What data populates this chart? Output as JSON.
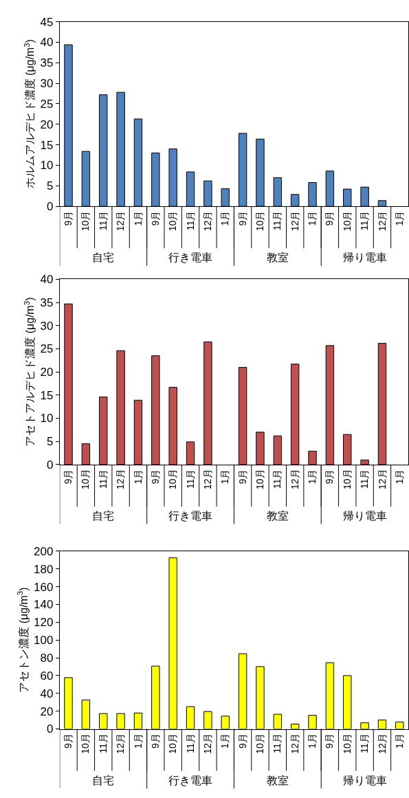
{
  "chart_data": [
    {
      "type": "bar",
      "ylabel": "ホルムアルデヒド濃度 (μg/m$^{3}$)",
      "categories": [
        "9月",
        "10月",
        "11月",
        "12月",
        "1月",
        "9月",
        "10月",
        "11月",
        "12月",
        "1月",
        "9月",
        "10月",
        "11月",
        "12月",
        "1月",
        "9月",
        "10月",
        "11月",
        "12月",
        "1月"
      ],
      "annotations": [
        "自宅",
        "行き電車",
        "教室",
        "帰り電車"
      ],
      "color": "#4f81bd",
      "values": [
        39.4,
        13.4,
        27.2,
        27.8,
        21.3,
        13.0,
        14.0,
        8.4,
        6.2,
        4.3,
        17.8,
        16.4,
        7.0,
        2.9,
        5.8,
        8.6,
        4.2,
        4.7,
        1.4,
        null
      ],
      "ylim": [
        0,
        45
      ],
      "yticks": [
        0,
        5,
        10,
        15,
        20,
        25,
        30,
        35,
        40,
        45
      ]
    },
    {
      "type": "bar",
      "ylabel": "アセトアルデヒド濃度 (μg/m$^{3}$)",
      "categories": [
        "9月",
        "10月",
        "11月",
        "12月",
        "1月",
        "9月",
        "10月",
        "11月",
        "12月",
        "1月",
        "9月",
        "10月",
        "11月",
        "12月",
        "1月",
        "9月",
        "10月",
        "11月",
        "12月",
        "1月"
      ],
      "annotations": [
        "自宅",
        "行き電車",
        "教室",
        "帰り電車"
      ],
      "color": "#c0504d",
      "values": [
        34.7,
        4.5,
        14.6,
        24.6,
        13.9,
        23.5,
        16.7,
        4.9,
        26.5,
        null,
        21.0,
        7.0,
        6.2,
        21.7,
        2.9,
        25.7,
        6.5,
        1.0,
        26.2,
        null
      ],
      "ylim": [
        0,
        40
      ],
      "yticks": [
        0,
        5,
        10,
        15,
        20,
        25,
        30,
        35,
        40
      ]
    },
    {
      "type": "bar",
      "ylabel": "アセトン濃度 (μg/m$^{3}$)",
      "categories": [
        "9月",
        "10月",
        "11月",
        "12月",
        "1月",
        "9月",
        "10月",
        "11月",
        "12月",
        "1月",
        "9月",
        "10月",
        "11月",
        "12月",
        "1月",
        "9月",
        "10月",
        "11月",
        "12月",
        "1月"
      ],
      "annotations": [
        "自宅",
        "行き電車",
        "教室",
        "帰り電車"
      ],
      "color": "#ffff00",
      "values": [
        57.7,
        32.6,
        17.3,
        17.3,
        17.9,
        70.7,
        192.5,
        25.1,
        19.6,
        14.4,
        84.6,
        70.1,
        16.5,
        5.5,
        15.3,
        74.5,
        60.0,
        6.9,
        10.1,
        7.8
      ],
      "ylim": [
        0,
        200
      ],
      "yticks": [
        0,
        20,
        40,
        60,
        80,
        100,
        120,
        140,
        160,
        180,
        200
      ]
    }
  ]
}
